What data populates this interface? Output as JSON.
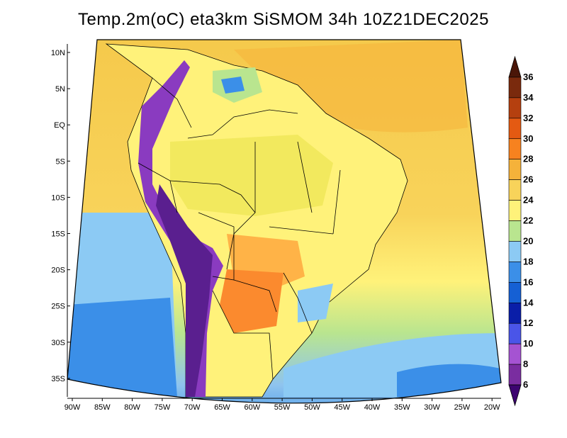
{
  "title": "Temp.2m(oC) eta3km SiSMOM 34h 10Z21DEC2025",
  "colors": {
    "ocean_north": "#f5c94b",
    "ocean_south_mid": "#b9e58f",
    "ocean_south": "#8fc4ee",
    "ocean_deep": "#3d8ee0",
    "land_base": "#fff27a",
    "amazon": "#f2e95e",
    "andes_dark": "#5a1f8f",
    "andes_mid": "#8a3bc0",
    "plateau": "#ffb347",
    "chaco": "#fb8a2e",
    "border": "#000000"
  },
  "lat_ticks": [
    "10N",
    "5N",
    "EQ",
    "5S",
    "10S",
    "15S",
    "20S",
    "25S",
    "30S",
    "35S"
  ],
  "lon_ticks": [
    "90W",
    "85W",
    "80W",
    "75W",
    "70W",
    "65W",
    "60W",
    "55W",
    "50W",
    "45W",
    "40W",
    "35W",
    "30W",
    "25W",
    "20W"
  ],
  "colorbar": {
    "levels": [
      "6",
      "8",
      "10",
      "12",
      "14",
      "16",
      "18",
      "20",
      "22",
      "24",
      "26",
      "28",
      "30",
      "32",
      "34",
      "36"
    ],
    "colors": [
      "#3d0470",
      "#7a2da0",
      "#a553d2",
      "#4a55e8",
      "#0a1ea8",
      "#1560d4",
      "#3b8fe8",
      "#8ccaf4",
      "#b9e58f",
      "#fff27a",
      "#f8d35a",
      "#f5b23a",
      "#f7821f",
      "#e45a12",
      "#b5400f",
      "#7a2a0d",
      "#4a1608"
    ]
  }
}
